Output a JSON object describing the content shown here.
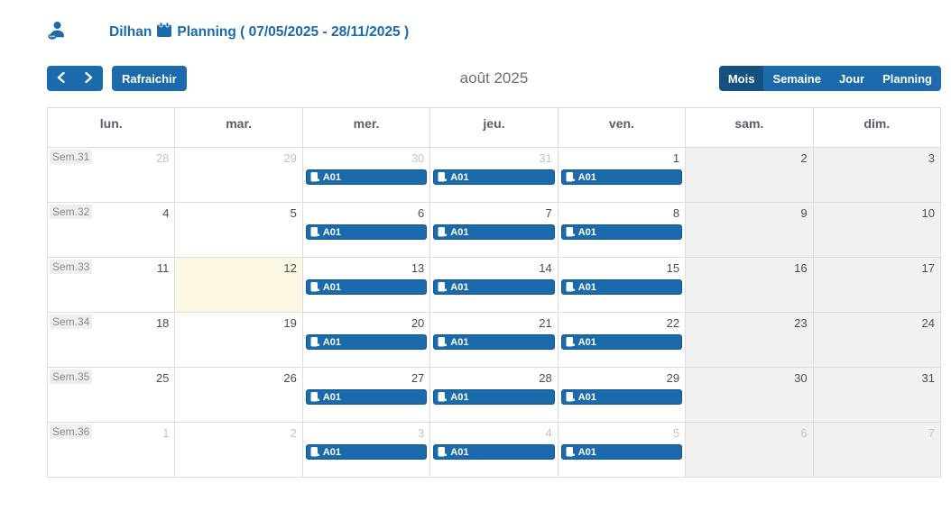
{
  "header": {
    "user_name": "Dilhan",
    "planning_title": "Planning ( 07/05/2025 - 28/11/2025 )"
  },
  "toolbar": {
    "refresh_label": "Rafraichir",
    "month_title": "août 2025",
    "views": [
      {
        "label": "Mois",
        "active": true
      },
      {
        "label": "Semaine",
        "active": false
      },
      {
        "label": "Jour",
        "active": false
      },
      {
        "label": "Planning",
        "active": false
      }
    ]
  },
  "calendar": {
    "day_headers": [
      "lun.",
      "mar.",
      "mer.",
      "jeu.",
      "ven.",
      "sam.",
      "dim."
    ],
    "weeks": [
      {
        "label": "Sem.31",
        "days": [
          {
            "date": "28",
            "muted": true
          },
          {
            "date": "29",
            "muted": true
          },
          {
            "date": "30",
            "muted": true,
            "event": "A01"
          },
          {
            "date": "31",
            "muted": true,
            "event": "A01"
          },
          {
            "date": "1",
            "event": "A01"
          },
          {
            "date": "2"
          },
          {
            "date": "3"
          }
        ]
      },
      {
        "label": "Sem.32",
        "days": [
          {
            "date": "4"
          },
          {
            "date": "5"
          },
          {
            "date": "6",
            "event": "A01"
          },
          {
            "date": "7",
            "event": "A01"
          },
          {
            "date": "8",
            "event": "A01"
          },
          {
            "date": "9"
          },
          {
            "date": "10"
          }
        ]
      },
      {
        "label": "Sem.33",
        "days": [
          {
            "date": "11"
          },
          {
            "date": "12",
            "today": true
          },
          {
            "date": "13",
            "event": "A01"
          },
          {
            "date": "14",
            "event": "A01"
          },
          {
            "date": "15",
            "event": "A01"
          },
          {
            "date": "16"
          },
          {
            "date": "17"
          }
        ]
      },
      {
        "label": "Sem.34",
        "days": [
          {
            "date": "18"
          },
          {
            "date": "19"
          },
          {
            "date": "20",
            "event": "A01"
          },
          {
            "date": "21",
            "event": "A01"
          },
          {
            "date": "22",
            "event": "A01"
          },
          {
            "date": "23"
          },
          {
            "date": "24"
          }
        ]
      },
      {
        "label": "Sem.35",
        "days": [
          {
            "date": "25"
          },
          {
            "date": "26"
          },
          {
            "date": "27",
            "event": "A01"
          },
          {
            "date": "28",
            "event": "A01"
          },
          {
            "date": "29",
            "event": "A01"
          },
          {
            "date": "30"
          },
          {
            "date": "31"
          }
        ]
      },
      {
        "label": "Sem.36",
        "days": [
          {
            "date": "1",
            "muted": true
          },
          {
            "date": "2",
            "muted": true
          },
          {
            "date": "3",
            "muted": true,
            "event": "A01"
          },
          {
            "date": "4",
            "muted": true,
            "event": "A01"
          },
          {
            "date": "5",
            "muted": true,
            "event": "A01"
          },
          {
            "date": "6",
            "muted": true
          },
          {
            "date": "7",
            "muted": true
          }
        ]
      }
    ]
  },
  "icons": {
    "header_left": "user-badge-icon",
    "title": "calendar-icon",
    "prev": "chevron-left-icon",
    "next": "chevron-right-icon",
    "event": "door-icon"
  },
  "colors": {
    "primary": "#1a6aac",
    "primary_active": "#14517f",
    "today_bg": "#fcf8e3",
    "weekend_bg": "#f1f1f1",
    "border": "#dddddd"
  }
}
